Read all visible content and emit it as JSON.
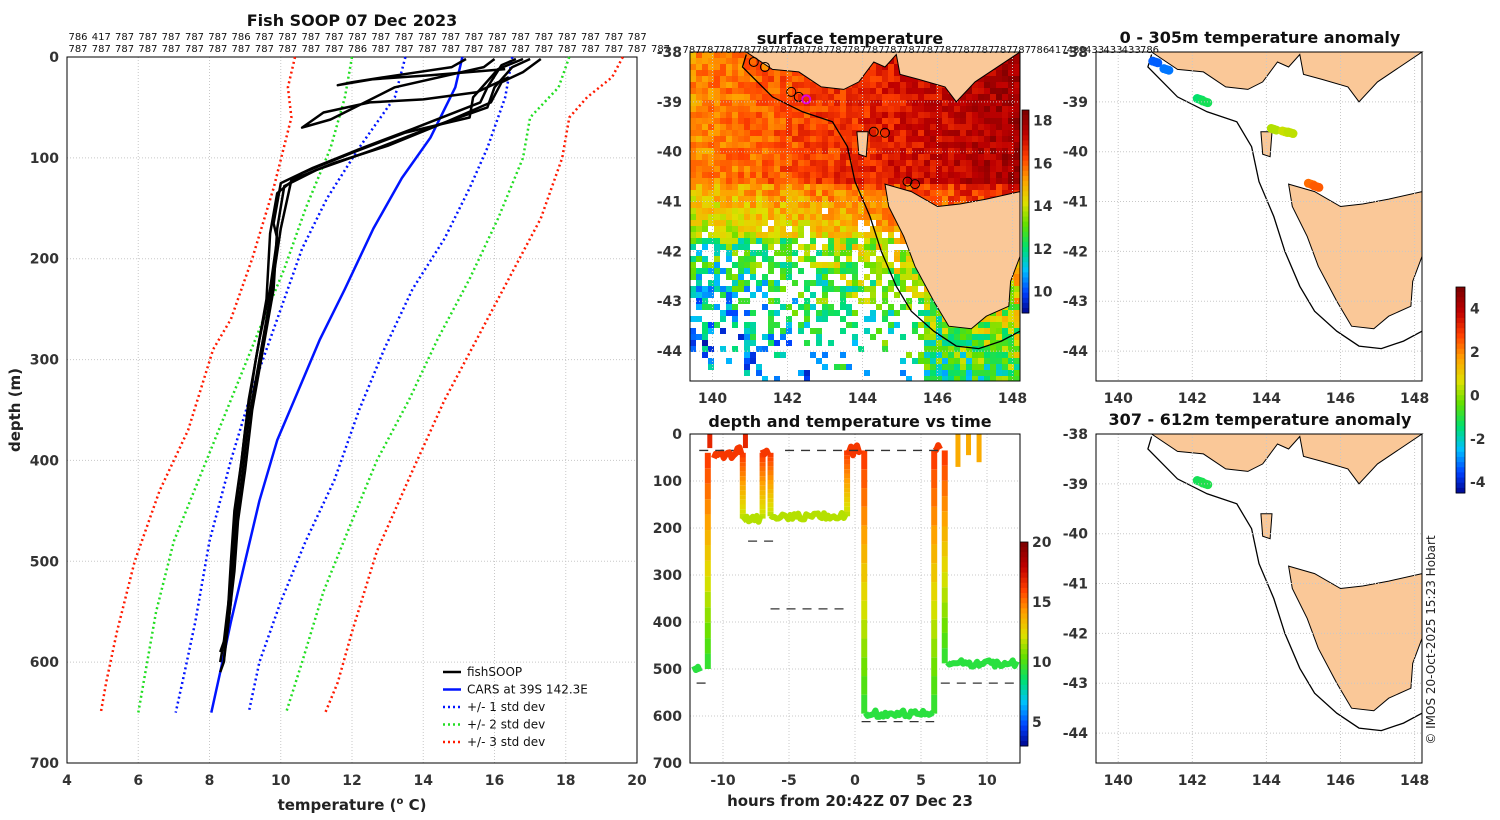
{
  "credit": "© IMOS 20-Oct-2025 15:23 Hobart",
  "colors": {
    "fishsoop": "#000000",
    "cars": "#0014ff",
    "std1": "#0014ff",
    "std2": "#22dd22",
    "std3": "#ff1a00",
    "land": "#fac898",
    "ssd_ramp": [
      "#000080",
      "#0040ff",
      "#00c0ff",
      "#00e070",
      "#60e000",
      "#e0e000",
      "#ffa000",
      "#ff4000",
      "#c00000",
      "#800000"
    ]
  },
  "chart_data": [
    {
      "id": "profile",
      "type": "line",
      "title": "Fish SOOP 07 Dec 2023",
      "xlabel": "temperature (",
      "xlabel_sup": "o",
      "xlabel_end": " C)",
      "ylabel": "depth (m)",
      "xlim": [
        4,
        20
      ],
      "ylim": [
        0,
        700
      ],
      "xticks": [
        "4",
        "6",
        "8",
        "10",
        "12",
        "14",
        "16",
        "18",
        "20"
      ],
      "yticks": [
        "0",
        "100",
        "200",
        "300",
        "400",
        "500",
        "600",
        "700"
      ],
      "top_labels_row1": [
        "786",
        "417",
        "787",
        "787",
        "787",
        "787",
        "787",
        "786",
        "787",
        "787",
        "787",
        "787",
        "787",
        "787",
        "787",
        "787",
        "787",
        "787",
        "787",
        "787",
        "787",
        "787",
        "787",
        "787",
        "787"
      ],
      "top_labels_row2": [
        "787",
        "787",
        "787",
        "787",
        "787",
        "787",
        "787",
        "787",
        "787",
        "787",
        "787",
        "787",
        "786",
        "787",
        "787",
        "787",
        "787",
        "787",
        "787",
        "787",
        "787",
        "787",
        "787",
        "787",
        "787",
        "787"
      ],
      "legend": [
        "fishSOOP",
        "CARS at 39S 142.3E",
        "+/- 1 std dev",
        "+/- 2 std dev",
        "+/- 3 std dev"
      ],
      "cars": [
        [
          15.1,
          0
        ],
        [
          14.9,
          30
        ],
        [
          14.2,
          80
        ],
        [
          13.4,
          120
        ],
        [
          12.6,
          170
        ],
        [
          11.8,
          230
        ],
        [
          11.1,
          280
        ],
        [
          10.5,
          330
        ],
        [
          9.9,
          380
        ],
        [
          9.4,
          440
        ],
        [
          9.0,
          500
        ],
        [
          8.6,
          560
        ],
        [
          8.3,
          610
        ],
        [
          8.05,
          650
        ]
      ],
      "std1_low": [
        [
          13.5,
          0
        ],
        [
          13.2,
          40
        ],
        [
          12.2,
          90
        ],
        [
          11.3,
          140
        ],
        [
          10.6,
          190
        ],
        [
          9.9,
          260
        ],
        [
          9.2,
          330
        ],
        [
          8.6,
          400
        ],
        [
          8.0,
          480
        ],
        [
          7.6,
          560
        ],
        [
          7.3,
          610
        ],
        [
          7.05,
          650
        ]
      ],
      "std1_high": [
        [
          16.5,
          0
        ],
        [
          16.3,
          40
        ],
        [
          15.8,
          90
        ],
        [
          15.3,
          130
        ],
        [
          14.6,
          180
        ],
        [
          13.7,
          230
        ],
        [
          12.9,
          290
        ],
        [
          12.2,
          350
        ],
        [
          11.5,
          420
        ],
        [
          10.7,
          480
        ],
        [
          10.0,
          540
        ],
        [
          9.4,
          600
        ],
        [
          9.1,
          650
        ]
      ],
      "std2_low": [
        [
          12.0,
          0
        ],
        [
          11.8,
          40
        ],
        [
          11.4,
          90
        ],
        [
          10.7,
          150
        ],
        [
          10.1,
          210
        ],
        [
          9.4,
          270
        ],
        [
          8.6,
          340
        ],
        [
          7.8,
          410
        ],
        [
          7.0,
          480
        ],
        [
          6.5,
          550
        ],
        [
          6.2,
          610
        ],
        [
          6.0,
          650
        ]
      ],
      "std2_high": [
        [
          18.1,
          0
        ],
        [
          17.8,
          30
        ],
        [
          17.0,
          60
        ],
        [
          16.8,
          100
        ],
        [
          16.1,
          160
        ],
        [
          15.3,
          220
        ],
        [
          14.4,
          280
        ],
        [
          13.6,
          340
        ],
        [
          12.7,
          400
        ],
        [
          12.0,
          460
        ],
        [
          11.2,
          530
        ],
        [
          10.6,
          600
        ],
        [
          10.15,
          650
        ]
      ],
      "std3_low": [
        [
          10.4,
          0
        ],
        [
          10.2,
          30
        ],
        [
          10.3,
          60
        ],
        [
          9.8,
          130
        ],
        [
          9.2,
          200
        ],
        [
          8.6,
          260
        ],
        [
          8.1,
          290
        ],
        [
          7.4,
          370
        ],
        [
          6.6,
          430
        ],
        [
          5.9,
          500
        ],
        [
          5.4,
          570
        ],
        [
          5.1,
          620
        ],
        [
          4.95,
          650
        ]
      ],
      "std3_high": [
        [
          19.6,
          0
        ],
        [
          19.3,
          20
        ],
        [
          18.6,
          40
        ],
        [
          18.1,
          60
        ],
        [
          17.9,
          100
        ],
        [
          17.3,
          160
        ],
        [
          16.4,
          220
        ],
        [
          15.5,
          280
        ],
        [
          14.6,
          340
        ],
        [
          13.7,
          410
        ],
        [
          12.7,
          490
        ],
        [
          12.0,
          570
        ],
        [
          11.6,
          620
        ],
        [
          11.25,
          650
        ]
      ],
      "fishsoop_profiles": [
        [
          [
            16.6,
            2
          ],
          [
            16.2,
            8
          ],
          [
            15.8,
            30
          ],
          [
            15.6,
            45
          ],
          [
            13.8,
            70
          ],
          [
            12.3,
            90
          ],
          [
            10.9,
            110
          ],
          [
            10.0,
            125
          ],
          [
            9.8,
            165
          ],
          [
            9.9,
            180
          ],
          [
            9.7,
            230
          ],
          [
            9.4,
            280
          ],
          [
            9.1,
            340
          ],
          [
            8.9,
            400
          ],
          [
            8.7,
            450
          ],
          [
            8.6,
            500
          ],
          [
            8.5,
            560
          ],
          [
            8.4,
            600
          ]
        ],
        [
          [
            17.0,
            2
          ],
          [
            16.5,
            10
          ],
          [
            16.0,
            30
          ],
          [
            15.8,
            50
          ],
          [
            14.2,
            70
          ],
          [
            12.6,
            92
          ],
          [
            11.0,
            112
          ],
          [
            10.1,
            128
          ],
          [
            9.9,
            170
          ],
          [
            9.8,
            230
          ],
          [
            9.5,
            290
          ],
          [
            9.2,
            350
          ],
          [
            9.0,
            410
          ],
          [
            8.8,
            460
          ],
          [
            8.7,
            510
          ],
          [
            8.5,
            570
          ],
          [
            8.3,
            590
          ]
        ],
        [
          [
            17.3,
            2
          ],
          [
            16.8,
            15
          ],
          [
            16.2,
            25
          ],
          [
            15.9,
            45
          ],
          [
            14.6,
            65
          ],
          [
            13.0,
            88
          ],
          [
            11.5,
            105
          ],
          [
            10.3,
            122
          ],
          [
            10.0,
            170
          ],
          [
            9.7,
            240
          ],
          [
            9.4,
            300
          ],
          [
            9.1,
            360
          ],
          [
            8.9,
            420
          ],
          [
            8.7,
            480
          ],
          [
            8.6,
            540
          ],
          [
            8.4,
            600
          ],
          [
            8.3,
            610
          ]
        ],
        [
          [
            16.0,
            2
          ],
          [
            15.7,
            10
          ],
          [
            13.2,
            30
          ],
          [
            11.4,
            62
          ],
          [
            10.6,
            70
          ],
          [
            11.2,
            55
          ],
          [
            12.5,
            45
          ],
          [
            14.0,
            42
          ],
          [
            15.5,
            35
          ],
          [
            16.4,
            20
          ]
        ],
        [
          [
            16.8,
            2
          ],
          [
            16.1,
            12
          ],
          [
            15.4,
            40
          ],
          [
            15.3,
            60
          ],
          [
            13.5,
            75
          ],
          [
            12.0,
            95
          ],
          [
            10.6,
            115
          ],
          [
            9.9,
            135
          ],
          [
            9.7,
            175
          ],
          [
            9.6,
            240
          ],
          [
            9.3,
            300
          ],
          [
            9.0,
            370
          ],
          [
            8.8,
            430
          ],
          [
            8.7,
            470
          ],
          [
            8.6,
            520
          ],
          [
            8.4,
            580
          ],
          [
            8.3,
            600
          ]
        ],
        [
          [
            15.2,
            2
          ],
          [
            14.8,
            10
          ],
          [
            12.9,
            20
          ],
          [
            12.0,
            25
          ],
          [
            11.6,
            28
          ],
          [
            12.6,
            22
          ],
          [
            14.2,
            18
          ],
          [
            16.3,
            12
          ]
        ]
      ]
    },
    {
      "id": "sst",
      "type": "heatmap",
      "title": "surface temperature",
      "xticks": [
        "140",
        "142",
        "144",
        "146",
        "148"
      ],
      "yticks": [
        "-38",
        "-39",
        "-40",
        "-41",
        "-42",
        "-43",
        "-44"
      ],
      "xlim": [
        139.4,
        148.2
      ],
      "ylim": [
        -44.6,
        -38.0
      ],
      "colorbar": {
        "ticks": [
          "18",
          "16",
          "14",
          "12",
          "10"
        ],
        "range": [
          9,
          18.5
        ]
      },
      "top_labels": [
        "787",
        "787",
        "787",
        "787",
        "787",
        "787",
        "787",
        "787",
        "787",
        "787",
        "787",
        "787",
        "787",
        "787",
        "787",
        "787",
        "787",
        "787",
        "787",
        "786",
        "417",
        "433",
        "433",
        "433",
        "433",
        "786"
      ]
    },
    {
      "id": "depth_time",
      "type": "scatter",
      "title": "depth and temperature vs time",
      "xlabel": "hours from 20:42Z 07 Dec 23",
      "xlim": [
        -12.5,
        12.5
      ],
      "ylim": [
        0,
        700
      ],
      "xticks": [
        "-10",
        "-5",
        "0",
        "5",
        "10"
      ],
      "yticks": [
        "0",
        "100",
        "200",
        "300",
        "400",
        "500",
        "600",
        "700"
      ],
      "colorbar": {
        "ticks": [
          "20",
          "15",
          "10",
          "5"
        ],
        "range": [
          3,
          20
        ]
      },
      "segments": [
        {
          "t": [
            -12.2,
            -11.6
          ],
          "d": 500,
          "temp": 9.5
        },
        {
          "t": [
            -10.7,
            -8.5
          ],
          "d": 40,
          "temp": 16.5
        },
        {
          "t": [
            -8.5,
            -7.0
          ],
          "d": 180,
          "temp": 11.8
        },
        {
          "t": [
            -7.0,
            -6.4
          ],
          "d": 40,
          "temp": 16.5
        },
        {
          "t": [
            -6.4,
            -0.6
          ],
          "d": 175,
          "temp": 11.8
        },
        {
          "t": [
            -0.6,
            0.6
          ],
          "d": 35,
          "temp": 16.5
        },
        {
          "t": [
            0.8,
            6.0
          ],
          "d": 595,
          "temp": 9.5
        },
        {
          "t": [
            6.0,
            6.6
          ],
          "d": 35,
          "temp": 16.5
        },
        {
          "t": [
            7.0,
            12.3
          ],
          "d": 488,
          "temp": 9.5
        }
      ],
      "dashes": [
        [
          -12,
          -10.9,
          530
        ],
        [
          -8.1,
          -6.2,
          228
        ],
        [
          -6.4,
          -0.5,
          372
        ],
        [
          0.5,
          6.0,
          612
        ],
        [
          6.5,
          12.3,
          530
        ],
        [
          -11.8,
          -9.2,
          35
        ],
        [
          -5.3,
          6.3,
          35
        ]
      ]
    },
    {
      "id": "anom_upper",
      "type": "scatter",
      "title": "0 - 305m temperature anomaly",
      "xticks": [
        "140",
        "142",
        "144",
        "146",
        "148"
      ],
      "yticks": [
        "-38",
        "-39",
        "-40",
        "-41",
        "-42",
        "-43",
        "-44"
      ],
      "xlim": [
        139.4,
        148.2
      ],
      "ylim": [
        -44.6,
        -38.0
      ],
      "points": [
        [
          141.0,
          -38.2,
          -3.2
        ],
        [
          141.3,
          -38.35,
          -3.0
        ],
        [
          142.2,
          -38.95,
          -1.3
        ],
        [
          142.35,
          -39.0,
          -1.1
        ],
        [
          144.2,
          -39.55,
          0.4
        ],
        [
          144.5,
          -39.6,
          0.6
        ],
        [
          144.65,
          -39.62,
          0.5
        ],
        [
          145.2,
          -40.65,
          2.4
        ],
        [
          145.35,
          -40.7,
          2.6
        ]
      ]
    },
    {
      "id": "anom_lower",
      "type": "scatter",
      "title": "307 - 612m temperature anomaly",
      "xticks": [
        "140",
        "142",
        "144",
        "146",
        "148"
      ],
      "yticks": [
        "-38",
        "-39",
        "-40",
        "-41",
        "-42",
        "-43",
        "-44"
      ],
      "xlim": [
        139.4,
        148.2
      ],
      "ylim": [
        -44.6,
        -38.0
      ],
      "points": [
        [
          142.2,
          -38.95,
          -1.1
        ],
        [
          142.35,
          -39.0,
          -1.0
        ]
      ],
      "colorbar": {
        "ticks": [
          "4",
          "2",
          "0",
          "-2",
          "-4"
        ],
        "range": [
          -4.5,
          5
        ]
      }
    }
  ]
}
